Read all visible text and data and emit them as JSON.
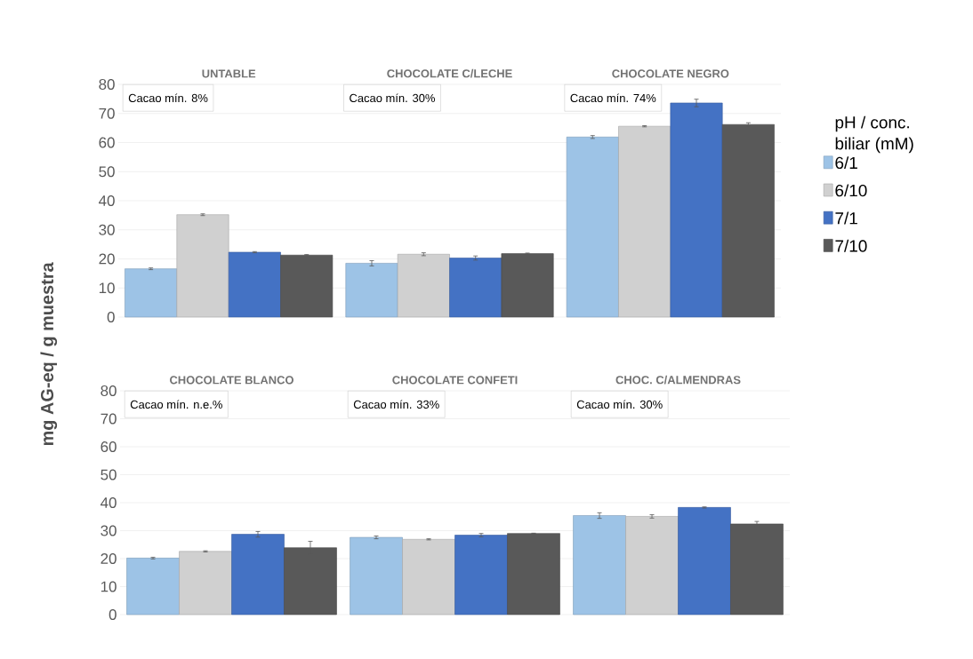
{
  "chart_data": [
    {
      "type": "bar",
      "ylabel": "mg AG-eq / g muestra",
      "categories": [
        "UNTABLE",
        "CHOCOLATE C/LECHE",
        "CHOCOLATE NEGRO"
      ],
      "ylim": [
        0,
        80
      ],
      "yticks": [
        0,
        10,
        20,
        30,
        40,
        50,
        60,
        70,
        80
      ],
      "grid": "y",
      "annotations": [
        "Cacao mín. 8%",
        "Cacao mín. 30%",
        "Cacao mín. 74%"
      ],
      "legend": "right",
      "legend_title": "pH / conc. biliar (mM)",
      "series": [
        {
          "name": "6/1",
          "color": "#9dc3e6",
          "values": [
            16.6,
            18.5,
            61.9
          ],
          "errors": [
            0.3,
            0.9,
            0.5
          ]
        },
        {
          "name": "6/10",
          "color": "#d0d0d0",
          "values": [
            35.2,
            21.6,
            65.6
          ],
          "errors": [
            0.3,
            0.5,
            0.2
          ]
        },
        {
          "name": "7/1",
          "color": "#4472c4",
          "values": [
            22.3,
            20.3,
            73.6
          ],
          "errors": [
            0.2,
            0.7,
            1.3
          ]
        },
        {
          "name": "7/10",
          "color": "#595959",
          "values": [
            21.3,
            21.8,
            66.2
          ],
          "errors": [
            0.2,
            0.2,
            0.6
          ]
        }
      ]
    },
    {
      "type": "bar",
      "categories": [
        "CHOCOLATE BLANCO",
        "CHOCOLATE CONFETI",
        "CHOC. C/ALMENDRAS"
      ],
      "ylim": [
        0,
        80
      ],
      "yticks": [
        0,
        10,
        20,
        30,
        40,
        50,
        60,
        70,
        80
      ],
      "grid": "y",
      "annotations": [
        "Cacao mín. n.e.%",
        "Cacao mín. 33%",
        "Cacao mín. 30%"
      ],
      "series": [
        {
          "color": "#9dc3e6",
          "values": [
            20.2,
            27.6,
            35.4
          ],
          "errors": [
            0.3,
            0.5,
            1.0
          ]
        },
        {
          "color": "#d0d0d0",
          "values": [
            22.6,
            26.9,
            35.1
          ],
          "errors": [
            0.2,
            0.2,
            0.6
          ]
        },
        {
          "color": "#4472c4",
          "values": [
            28.7,
            28.4,
            38.3
          ],
          "errors": [
            1.0,
            0.6,
            0.2
          ]
        },
        {
          "color": "#595959",
          "values": [
            23.9,
            29.0,
            32.4
          ],
          "errors": [
            2.3,
            0.1,
            0.9
          ]
        }
      ]
    }
  ]
}
